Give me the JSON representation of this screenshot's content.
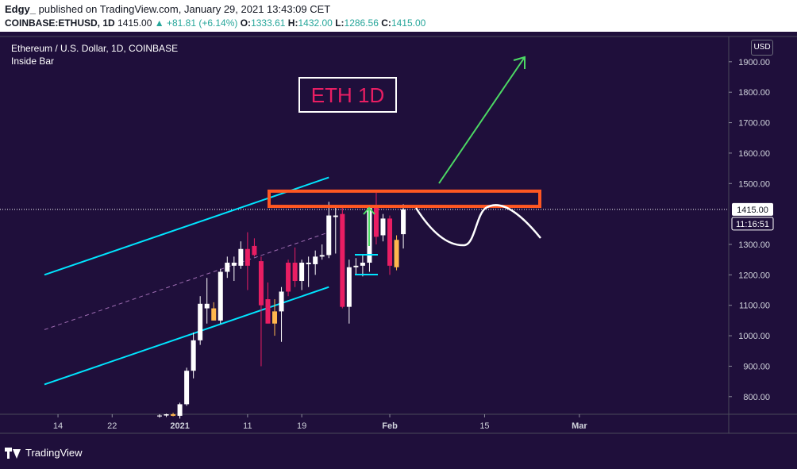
{
  "header": {
    "author": "Edgy_",
    "published": "published on TradingView.com, January 29, 2021 13:43:09 CET",
    "symbol": "COINBASE:ETHUSD, 1D",
    "last": "1415.00",
    "change": "▲ +81.81 (+6.14%)",
    "o_label": "O:",
    "o_val": "1333.61",
    "h_label": "H:",
    "h_val": "1432.00",
    "l_label": "L:",
    "l_val": "1286.56",
    "c_label": "C:",
    "c_val": "1415.00"
  },
  "legend": {
    "title": "Ethereum / U.S. Dollar, 1D, COINBASE",
    "indicator": "Inside Bar"
  },
  "annotation": {
    "label": "ETH 1D"
  },
  "currency_button": "USD",
  "price_tag": "1415.00",
  "countdown_tag": "11:16:51",
  "footer": {
    "brand": "TradingView"
  },
  "colors": {
    "background": "#1f0f3b",
    "bull": "#ffffff",
    "bear": "#e91e63",
    "inside_bar": "#ffb74d",
    "channel": "#00e5ff",
    "resistance": "#ff5722",
    "arrow": "#4cd964",
    "projection": "#ffffff",
    "annotation": "#e91e63"
  },
  "chart_data": {
    "type": "candlestick",
    "y_axis": {
      "ticks": [
        "1900.00",
        "1800.00",
        "1700.00",
        "1600.00",
        "1500.00",
        "1300.00",
        "1200.00",
        "1100.00",
        "1000.00",
        "900.00",
        "800.00"
      ],
      "min": 740,
      "max": 1965
    },
    "x_axis": {
      "ticks": [
        "14",
        "22",
        "2021",
        "11",
        "19",
        "Feb",
        "15",
        "Mar"
      ]
    },
    "candles": [
      {
        "o": 735,
        "h": 742,
        "l": 731,
        "c": 738,
        "f": "w"
      },
      {
        "o": 738,
        "h": 744,
        "l": 733,
        "c": 742,
        "f": "w"
      },
      {
        "o": 742,
        "h": 747,
        "l": 735,
        "c": 737,
        "f": "o"
      },
      {
        "o": 737,
        "h": 780,
        "l": 728,
        "c": 775,
        "f": "w"
      },
      {
        "o": 775,
        "h": 895,
        "l": 770,
        "c": 885,
        "f": "w"
      },
      {
        "o": 885,
        "h": 1010,
        "l": 860,
        "c": 985,
        "f": "w"
      },
      {
        "o": 985,
        "h": 1130,
        "l": 970,
        "c": 1105,
        "f": "w"
      },
      {
        "o": 1105,
        "h": 1190,
        "l": 1040,
        "c": 1090,
        "f": "w"
      },
      {
        "o": 1090,
        "h": 1110,
        "l": 1050,
        "c": 1050,
        "f": "o"
      },
      {
        "o": 1050,
        "h": 1220,
        "l": 1040,
        "c": 1210,
        "f": "w"
      },
      {
        "o": 1210,
        "h": 1260,
        "l": 1190,
        "c": 1240,
        "f": "w"
      },
      {
        "o": 1240,
        "h": 1260,
        "l": 1180,
        "c": 1230,
        "f": "w"
      },
      {
        "o": 1230,
        "h": 1310,
        "l": 1220,
        "c": 1285,
        "f": "w"
      },
      {
        "o": 1285,
        "h": 1340,
        "l": 1150,
        "c": 1230,
        "f": "b"
      },
      {
        "o": 1295,
        "h": 1320,
        "l": 1260,
        "c": 1265,
        "f": "b"
      },
      {
        "o": 1245,
        "h": 1260,
        "l": 900,
        "c": 1100,
        "f": "b"
      },
      {
        "o": 1120,
        "h": 1175,
        "l": 1040,
        "c": 1040,
        "f": "b"
      },
      {
        "o": 1040,
        "h": 1120,
        "l": 1000,
        "c": 1080,
        "f": "o"
      },
      {
        "o": 1080,
        "h": 1160,
        "l": 980,
        "c": 1145,
        "f": "w"
      },
      {
        "o": 1145,
        "h": 1250,
        "l": 1130,
        "c": 1240,
        "f": "b"
      },
      {
        "o": 1240,
        "h": 1290,
        "l": 1160,
        "c": 1180,
        "f": "b"
      },
      {
        "o": 1180,
        "h": 1250,
        "l": 1150,
        "c": 1240,
        "f": "w"
      },
      {
        "o": 1240,
        "h": 1260,
        "l": 1160,
        "c": 1235,
        "f": "w"
      },
      {
        "o": 1235,
        "h": 1280,
        "l": 1200,
        "c": 1260,
        "f": "w"
      },
      {
        "o": 1260,
        "h": 1300,
        "l": 1250,
        "c": 1265,
        "f": "w"
      },
      {
        "o": 1265,
        "h": 1440,
        "l": 1255,
        "c": 1395,
        "f": "w"
      },
      {
        "o": 1395,
        "h": 1420,
        "l": 1270,
        "c": 1390,
        "f": "w"
      },
      {
        "o": 1400,
        "h": 1420,
        "l": 1090,
        "c": 1095,
        "f": "b"
      },
      {
        "o": 1095,
        "h": 1250,
        "l": 1040,
        "c": 1225,
        "f": "w"
      },
      {
        "o": 1225,
        "h": 1255,
        "l": 1200,
        "c": 1230,
        "f": "w"
      },
      {
        "o": 1230,
        "h": 1265,
        "l": 1195,
        "c": 1240,
        "f": "w"
      },
      {
        "o": 1240,
        "h": 1430,
        "l": 1210,
        "c": 1420,
        "f": "w"
      },
      {
        "o": 1420,
        "h": 1470,
        "l": 1300,
        "c": 1325,
        "f": "b"
      },
      {
        "o": 1330,
        "h": 1400,
        "l": 1310,
        "c": 1385,
        "f": "w"
      },
      {
        "o": 1385,
        "h": 1395,
        "l": 1200,
        "c": 1230,
        "f": "b"
      },
      {
        "o": 1225,
        "h": 1330,
        "l": 1215,
        "c": 1315,
        "f": "o"
      },
      {
        "o": 1333.61,
        "h": 1432,
        "l": 1286.56,
        "c": 1415,
        "f": "w"
      }
    ],
    "channel": {
      "upper": [
        [
          -17,
          1200
        ],
        [
          25,
          1520
        ]
      ],
      "lower": [
        [
          -17,
          840
        ],
        [
          25,
          1160
        ]
      ],
      "mid": [
        [
          -17,
          1020
        ],
        [
          25,
          1340
        ]
      ]
    },
    "resistance_zone": [
      1425,
      1475
    ],
    "last_price": 1415.0
  }
}
